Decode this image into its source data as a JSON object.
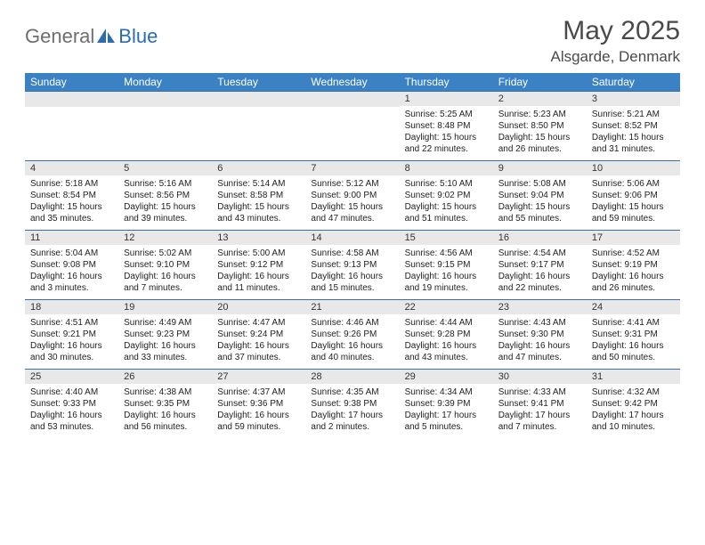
{
  "logo": {
    "text1": "General",
    "text2": "Blue"
  },
  "title": "May 2025",
  "location": "Alsgarde, Denmark",
  "colors": {
    "header_bg": "#3b82c4",
    "header_text": "#ffffff",
    "daynum_bg": "#e8e8e8",
    "border": "#3b6fa0",
    "logo_gray": "#6e6e6e",
    "logo_blue": "#2a6db0"
  },
  "day_names": [
    "Sunday",
    "Monday",
    "Tuesday",
    "Wednesday",
    "Thursday",
    "Friday",
    "Saturday"
  ],
  "weeks": [
    [
      {
        "num": "",
        "sunrise": "",
        "sunset": "",
        "daylight": ""
      },
      {
        "num": "",
        "sunrise": "",
        "sunset": "",
        "daylight": ""
      },
      {
        "num": "",
        "sunrise": "",
        "sunset": "",
        "daylight": ""
      },
      {
        "num": "",
        "sunrise": "",
        "sunset": "",
        "daylight": ""
      },
      {
        "num": "1",
        "sunrise": "Sunrise: 5:25 AM",
        "sunset": "Sunset: 8:48 PM",
        "daylight": "Daylight: 15 hours and 22 minutes."
      },
      {
        "num": "2",
        "sunrise": "Sunrise: 5:23 AM",
        "sunset": "Sunset: 8:50 PM",
        "daylight": "Daylight: 15 hours and 26 minutes."
      },
      {
        "num": "3",
        "sunrise": "Sunrise: 5:21 AM",
        "sunset": "Sunset: 8:52 PM",
        "daylight": "Daylight: 15 hours and 31 minutes."
      }
    ],
    [
      {
        "num": "4",
        "sunrise": "Sunrise: 5:18 AM",
        "sunset": "Sunset: 8:54 PM",
        "daylight": "Daylight: 15 hours and 35 minutes."
      },
      {
        "num": "5",
        "sunrise": "Sunrise: 5:16 AM",
        "sunset": "Sunset: 8:56 PM",
        "daylight": "Daylight: 15 hours and 39 minutes."
      },
      {
        "num": "6",
        "sunrise": "Sunrise: 5:14 AM",
        "sunset": "Sunset: 8:58 PM",
        "daylight": "Daylight: 15 hours and 43 minutes."
      },
      {
        "num": "7",
        "sunrise": "Sunrise: 5:12 AM",
        "sunset": "Sunset: 9:00 PM",
        "daylight": "Daylight: 15 hours and 47 minutes."
      },
      {
        "num": "8",
        "sunrise": "Sunrise: 5:10 AM",
        "sunset": "Sunset: 9:02 PM",
        "daylight": "Daylight: 15 hours and 51 minutes."
      },
      {
        "num": "9",
        "sunrise": "Sunrise: 5:08 AM",
        "sunset": "Sunset: 9:04 PM",
        "daylight": "Daylight: 15 hours and 55 minutes."
      },
      {
        "num": "10",
        "sunrise": "Sunrise: 5:06 AM",
        "sunset": "Sunset: 9:06 PM",
        "daylight": "Daylight: 15 hours and 59 minutes."
      }
    ],
    [
      {
        "num": "11",
        "sunrise": "Sunrise: 5:04 AM",
        "sunset": "Sunset: 9:08 PM",
        "daylight": "Daylight: 16 hours and 3 minutes."
      },
      {
        "num": "12",
        "sunrise": "Sunrise: 5:02 AM",
        "sunset": "Sunset: 9:10 PM",
        "daylight": "Daylight: 16 hours and 7 minutes."
      },
      {
        "num": "13",
        "sunrise": "Sunrise: 5:00 AM",
        "sunset": "Sunset: 9:12 PM",
        "daylight": "Daylight: 16 hours and 11 minutes."
      },
      {
        "num": "14",
        "sunrise": "Sunrise: 4:58 AM",
        "sunset": "Sunset: 9:13 PM",
        "daylight": "Daylight: 16 hours and 15 minutes."
      },
      {
        "num": "15",
        "sunrise": "Sunrise: 4:56 AM",
        "sunset": "Sunset: 9:15 PM",
        "daylight": "Daylight: 16 hours and 19 minutes."
      },
      {
        "num": "16",
        "sunrise": "Sunrise: 4:54 AM",
        "sunset": "Sunset: 9:17 PM",
        "daylight": "Daylight: 16 hours and 22 minutes."
      },
      {
        "num": "17",
        "sunrise": "Sunrise: 4:52 AM",
        "sunset": "Sunset: 9:19 PM",
        "daylight": "Daylight: 16 hours and 26 minutes."
      }
    ],
    [
      {
        "num": "18",
        "sunrise": "Sunrise: 4:51 AM",
        "sunset": "Sunset: 9:21 PM",
        "daylight": "Daylight: 16 hours and 30 minutes."
      },
      {
        "num": "19",
        "sunrise": "Sunrise: 4:49 AM",
        "sunset": "Sunset: 9:23 PM",
        "daylight": "Daylight: 16 hours and 33 minutes."
      },
      {
        "num": "20",
        "sunrise": "Sunrise: 4:47 AM",
        "sunset": "Sunset: 9:24 PM",
        "daylight": "Daylight: 16 hours and 37 minutes."
      },
      {
        "num": "21",
        "sunrise": "Sunrise: 4:46 AM",
        "sunset": "Sunset: 9:26 PM",
        "daylight": "Daylight: 16 hours and 40 minutes."
      },
      {
        "num": "22",
        "sunrise": "Sunrise: 4:44 AM",
        "sunset": "Sunset: 9:28 PM",
        "daylight": "Daylight: 16 hours and 43 minutes."
      },
      {
        "num": "23",
        "sunrise": "Sunrise: 4:43 AM",
        "sunset": "Sunset: 9:30 PM",
        "daylight": "Daylight: 16 hours and 47 minutes."
      },
      {
        "num": "24",
        "sunrise": "Sunrise: 4:41 AM",
        "sunset": "Sunset: 9:31 PM",
        "daylight": "Daylight: 16 hours and 50 minutes."
      }
    ],
    [
      {
        "num": "25",
        "sunrise": "Sunrise: 4:40 AM",
        "sunset": "Sunset: 9:33 PM",
        "daylight": "Daylight: 16 hours and 53 minutes."
      },
      {
        "num": "26",
        "sunrise": "Sunrise: 4:38 AM",
        "sunset": "Sunset: 9:35 PM",
        "daylight": "Daylight: 16 hours and 56 minutes."
      },
      {
        "num": "27",
        "sunrise": "Sunrise: 4:37 AM",
        "sunset": "Sunset: 9:36 PM",
        "daylight": "Daylight: 16 hours and 59 minutes."
      },
      {
        "num": "28",
        "sunrise": "Sunrise: 4:35 AM",
        "sunset": "Sunset: 9:38 PM",
        "daylight": "Daylight: 17 hours and 2 minutes."
      },
      {
        "num": "29",
        "sunrise": "Sunrise: 4:34 AM",
        "sunset": "Sunset: 9:39 PM",
        "daylight": "Daylight: 17 hours and 5 minutes."
      },
      {
        "num": "30",
        "sunrise": "Sunrise: 4:33 AM",
        "sunset": "Sunset: 9:41 PM",
        "daylight": "Daylight: 17 hours and 7 minutes."
      },
      {
        "num": "31",
        "sunrise": "Sunrise: 4:32 AM",
        "sunset": "Sunset: 9:42 PM",
        "daylight": "Daylight: 17 hours and 10 minutes."
      }
    ]
  ]
}
